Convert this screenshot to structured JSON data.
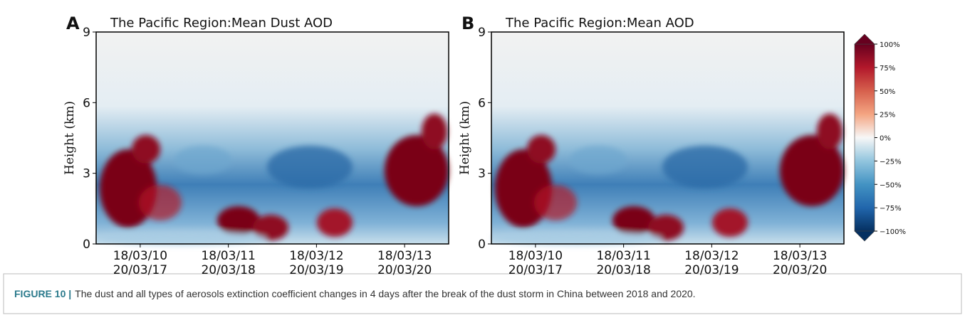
{
  "figure": {
    "panels": [
      {
        "letter": "A",
        "title": "The Pacific Region:Mean Dust AOD",
        "ylabel": "Height (km)",
        "ylim": [
          0,
          9
        ],
        "yticks": [
          0,
          3,
          6,
          9
        ],
        "xticks": [
          [
            "18/03/10",
            "20/03/17"
          ],
          [
            "18/03/11",
            "20/03/18"
          ],
          [
            "18/03/12",
            "20/03/19"
          ],
          [
            "18/03/13",
            "20/03/20"
          ]
        ]
      },
      {
        "letter": "B",
        "title": "The Pacific Region:Mean AOD",
        "ylabel": "Height (km)",
        "ylim": [
          0,
          9
        ],
        "yticks": [
          0,
          3,
          6,
          9
        ],
        "xticks": [
          [
            "18/03/10",
            "20/03/17"
          ],
          [
            "18/03/11",
            "20/03/18"
          ],
          [
            "18/03/12",
            "20/03/19"
          ],
          [
            "18/03/13",
            "20/03/20"
          ]
        ]
      }
    ],
    "colorbar": {
      "lim": [
        -100,
        100
      ],
      "ticks": [
        {
          "value": 100,
          "label": "100%"
        },
        {
          "value": 75,
          "label": "75%"
        },
        {
          "value": 50,
          "label": "50%"
        },
        {
          "value": 25,
          "label": "25%"
        },
        {
          "value": 0,
          "label": "0%"
        },
        {
          "value": -25,
          "label": "−25%"
        },
        {
          "value": -50,
          "label": "−50%"
        },
        {
          "value": -75,
          "label": "−75%"
        },
        {
          "value": -100,
          "label": "−100%"
        }
      ]
    },
    "caption": {
      "label": "FIGURE 10 |",
      "text": "The dust and all types of aerosols extinction coefficient changes in 4 days after the break of the dust storm in China between 2018 and 2020."
    }
  }
}
